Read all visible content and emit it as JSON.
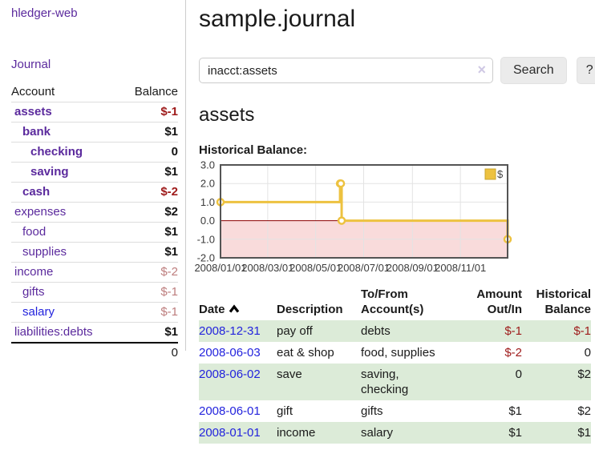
{
  "colors": {
    "accent_purple": "#5b2a9d",
    "link_blue": "#2323dd",
    "negative_strong": "#9e1a1a",
    "negative_light": "#bd7d7d",
    "stripe_green": "#dcebd8",
    "chart_gold": "#edc240",
    "chart_gold_border": "#c9a42c",
    "negative_region": "#f9dbdb",
    "zero_line": "#8b0000",
    "chart_border": "#545454",
    "grid": "#e3e3e3"
  },
  "sidebar": {
    "brand": "hledger-web",
    "journal_link": "Journal",
    "accounts_table": {
      "headers": {
        "account": "Account",
        "balance": "Balance"
      },
      "rows": [
        {
          "name": "assets",
          "balance": "$-1",
          "depth": 1,
          "bold": true,
          "balance_style": "neg-strong",
          "link_color": "purple"
        },
        {
          "name": "bank",
          "balance": "$1",
          "depth": 2,
          "bold": true,
          "balance_style": "pos",
          "link_color": "purple"
        },
        {
          "name": "checking",
          "balance": "0",
          "depth": 3,
          "bold": true,
          "balance_style": "pos",
          "link_color": "purple"
        },
        {
          "name": "saving",
          "balance": "$1",
          "depth": 3,
          "bold": true,
          "balance_style": "pos",
          "link_color": "purple"
        },
        {
          "name": "cash",
          "balance": "$-2",
          "depth": 2,
          "bold": true,
          "balance_style": "neg-strong",
          "link_color": "purple"
        },
        {
          "name": "expenses",
          "balance": "$2",
          "depth": 1,
          "bold": false,
          "balance_style": "pos",
          "link_color": "purple"
        },
        {
          "name": "food",
          "balance": "$1",
          "depth": 2,
          "bold": false,
          "balance_style": "pos",
          "link_color": "purple"
        },
        {
          "name": "supplies",
          "balance": "$1",
          "depth": 2,
          "bold": false,
          "balance_style": "pos",
          "link_color": "purple"
        },
        {
          "name": "income",
          "balance": "$-2",
          "depth": 1,
          "bold": false,
          "balance_style": "neg-light",
          "link_color": "purple"
        },
        {
          "name": "gifts",
          "balance": "$-1",
          "depth": 2,
          "bold": false,
          "balance_style": "neg-light",
          "link_color": "purple"
        },
        {
          "name": "salary",
          "balance": "$-1",
          "depth": 2,
          "bold": false,
          "balance_style": "neg-light",
          "link_color": "blue"
        },
        {
          "name": "liabilities:debts",
          "balance": "$1",
          "depth": 1,
          "bold": false,
          "balance_style": "pos",
          "link_color": "purple"
        }
      ],
      "total": "0"
    }
  },
  "main": {
    "title": "sample.journal",
    "search": {
      "value": "inacct:assets",
      "clear_glyph": "×",
      "button_label": "Search",
      "help_label": "?"
    },
    "account_heading": "assets",
    "chart_label": "Historical Balance:",
    "register_table": {
      "headers": {
        "date": "Date",
        "description": "Description",
        "accounts1": "To/From",
        "accounts2": "Account(s)",
        "amount1": "Amount",
        "amount2": "Out/In",
        "balance1": "Historical",
        "balance2": "Balance"
      },
      "sort": {
        "column": "date",
        "direction": "ascending"
      },
      "rows": [
        {
          "date": "2008-12-31",
          "description": "pay off",
          "accounts": [
            "debts"
          ],
          "amount": "$-1",
          "balance": "$-1"
        },
        {
          "date": "2008-06-03",
          "description": "eat & shop",
          "accounts": [
            "food, supplies"
          ],
          "amount": "$-2",
          "balance": "0"
        },
        {
          "date": "2008-06-02",
          "description": "save",
          "accounts": [
            "saving,",
            "checking"
          ],
          "amount": "0",
          "balance": "$2"
        },
        {
          "date": "2008-06-01",
          "description": "gift",
          "accounts": [
            "gifts"
          ],
          "amount": "$1",
          "balance": "$2"
        },
        {
          "date": "2008-01-01",
          "description": "income",
          "accounts": [
            "salary"
          ],
          "amount": "$1",
          "balance": "$1"
        }
      ]
    }
  },
  "chart_data": {
    "type": "line",
    "title": "Historical Balance:",
    "step": true,
    "series": [
      {
        "name": "$",
        "color": "#edc240",
        "points": [
          [
            "2008-01-01",
            1
          ],
          [
            "2008-06-01",
            2
          ],
          [
            "2008-06-02",
            2
          ],
          [
            "2008-06-03",
            0
          ],
          [
            "2008-12-31",
            -1
          ]
        ]
      }
    ],
    "xlim": [
      "2008-01-01",
      "2008-12-31"
    ],
    "ylim": [
      -2,
      3
    ],
    "y_tick_values": [
      3,
      2,
      1,
      0,
      -1,
      -2
    ],
    "y_tick_labels": [
      "3.0",
      "2.0",
      "1.0",
      "0.0",
      "-1.0",
      "-2.0"
    ],
    "x_tick_dates": [
      "2008-01-01",
      "2008-03-01",
      "2008-05-01",
      "2008-07-01",
      "2008-09-01",
      "2008-11-01"
    ],
    "x_tick_labels": [
      "2008/01/01",
      "2008/03/01",
      "2008/05/01",
      "2008/07/01",
      "2008/09/01",
      "2008/11/01"
    ],
    "grid": true,
    "legend_position": "top-right",
    "negative_region_color": "#f9dbdb",
    "zero_line_color": "#8b0000"
  }
}
